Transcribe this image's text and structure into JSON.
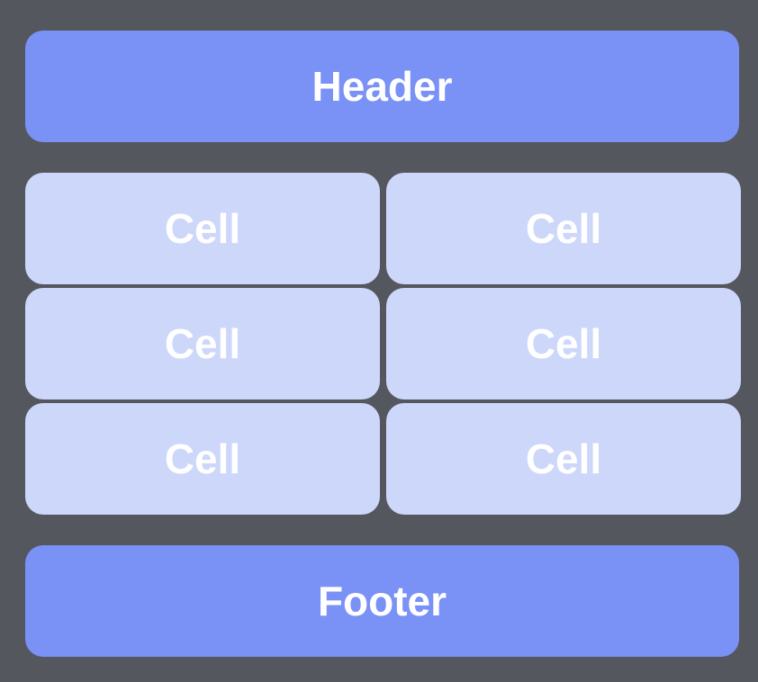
{
  "colors": {
    "background": "#55575f",
    "band": "#7a91f6",
    "cell": "#ccd7fa",
    "text": "#ffffff"
  },
  "header": {
    "label": "Header"
  },
  "grid": {
    "cells": [
      {
        "label": "Cell"
      },
      {
        "label": "Cell"
      },
      {
        "label": "Cell"
      },
      {
        "label": "Cell"
      },
      {
        "label": "Cell"
      },
      {
        "label": "Cell"
      }
    ]
  },
  "footer": {
    "label": "Footer"
  }
}
